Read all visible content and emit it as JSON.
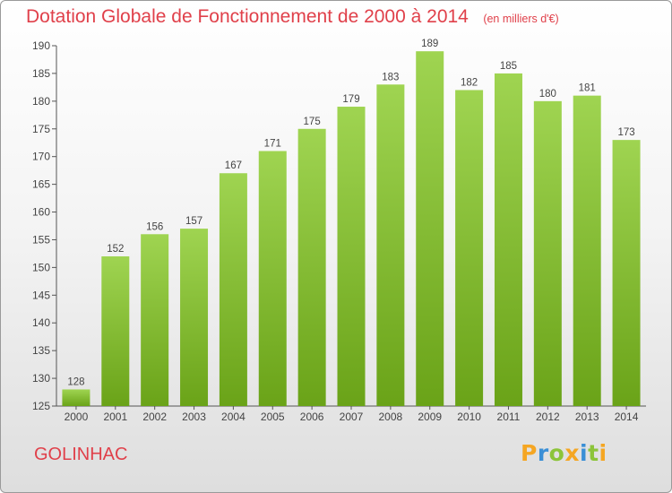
{
  "header": {
    "title": "Dotation Globale de Fonctionnement de 2000 à 2014",
    "unit": "(en milliers d'€)"
  },
  "commune": "GOLINHAC",
  "logo": {
    "text": "Proxiti",
    "icon": "proxiti-logo"
  },
  "colors": {
    "title": "#e0404a",
    "bar_light": "#9fd451",
    "bar_dark": "#6aa318",
    "axis": "#555555"
  },
  "chart_data": {
    "type": "bar",
    "title": "Dotation Globale de Fonctionnement de 2000 à 2014",
    "subtitle": "(en milliers d'€)",
    "xlabel": "",
    "ylabel": "",
    "categories": [
      "2000",
      "2001",
      "2002",
      "2003",
      "2004",
      "2005",
      "2006",
      "2007",
      "2008",
      "2009",
      "2010",
      "2011",
      "2012",
      "2013",
      "2014"
    ],
    "values": [
      128,
      152,
      156,
      157,
      167,
      171,
      175,
      179,
      183,
      189,
      182,
      185,
      180,
      181,
      173
    ],
    "ylim": [
      125,
      190
    ],
    "yticks": [
      125,
      130,
      135,
      140,
      145,
      150,
      155,
      160,
      165,
      170,
      175,
      180,
      185,
      190
    ],
    "grid": false,
    "legend": "none",
    "data_labels": true
  }
}
